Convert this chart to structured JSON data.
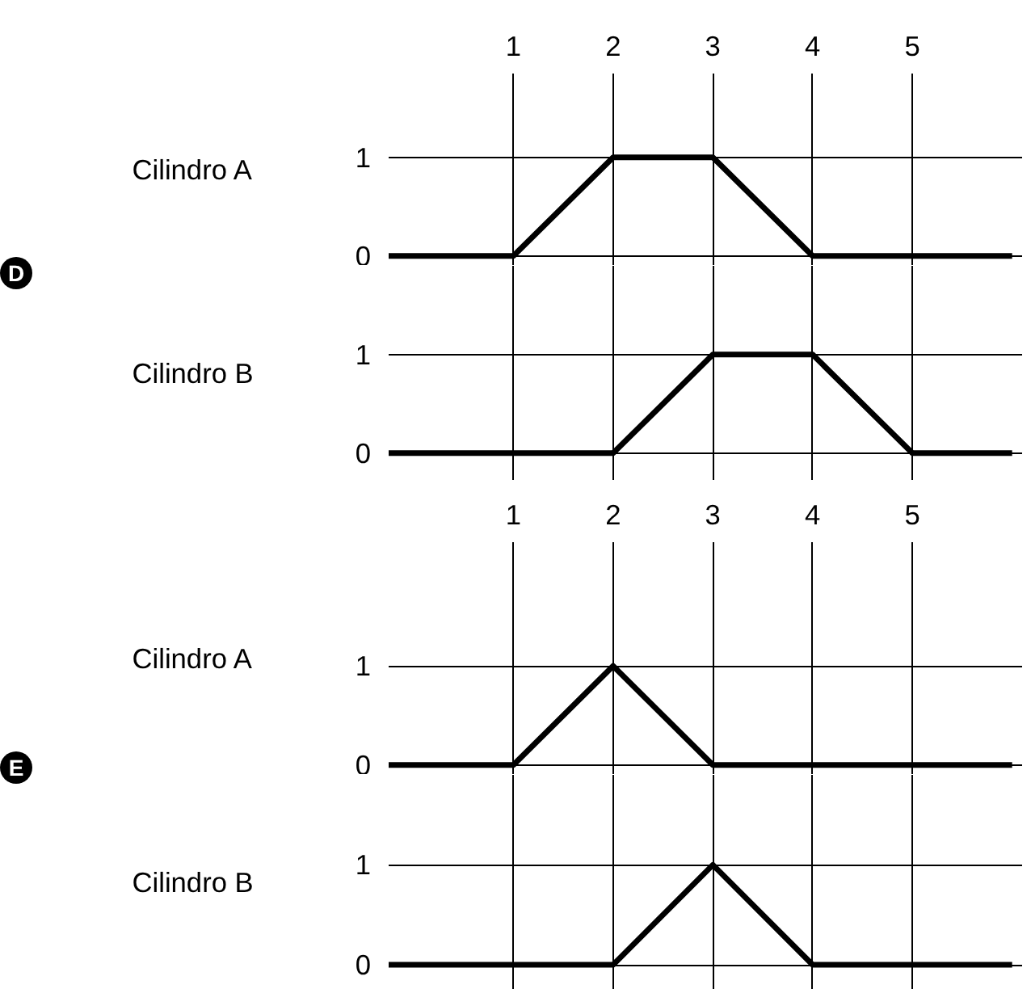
{
  "chart_data": [
    {
      "type": "line",
      "ylabel": "Cilindro A",
      "annotations": [
        "D"
      ],
      "x": [
        -0.25,
        1,
        2,
        3,
        4,
        6.0
      ],
      "series": [
        {
          "color": "#000000",
          "values": [
            0,
            0,
            1,
            1,
            0,
            0
          ]
        }
      ],
      "xlim": [
        -0.25,
        6.1
      ],
      "xticks": [
        1,
        2,
        3,
        4,
        5
      ],
      "ylim": [
        -0.1,
        1.85
      ],
      "yticks": [
        0,
        1
      ],
      "grid": true
    },
    {
      "type": "line",
      "ylabel": "Cilindro B",
      "x": [
        -0.25,
        2,
        3,
        4,
        5,
        6.0
      ],
      "series": [
        {
          "color": "#000000",
          "values": [
            0,
            0,
            1,
            1,
            0,
            0
          ]
        }
      ],
      "xlim": [
        -0.25,
        6.1
      ],
      "xticks": [
        1,
        2,
        3,
        4,
        5
      ],
      "ylim": [
        -0.28,
        1.9
      ],
      "yticks": [
        0,
        1
      ],
      "grid": true,
      "tick_labels": "y"
    },
    {
      "type": "line",
      "ylabel": "Cilindro A",
      "annotations": [
        "E"
      ],
      "x": [
        -0.25,
        1,
        2,
        3,
        6.0
      ],
      "series": [
        {
          "color": "#000000",
          "values": [
            0,
            0,
            1,
            0,
            0
          ]
        }
      ],
      "xlim": [
        -0.25,
        6.1
      ],
      "xticks": [
        1,
        2,
        3,
        4,
        5
      ],
      "ylim": [
        -0.1,
        2.25
      ],
      "yticks": [
        0,
        1
      ],
      "grid": true
    },
    {
      "type": "line",
      "ylabel": "Cilindro B",
      "x": [
        -0.25,
        2,
        3,
        4,
        6.0
      ],
      "series": [
        {
          "color": "#000000",
          "values": [
            0,
            0,
            1,
            0,
            0
          ]
        }
      ],
      "xlim": [
        -0.25,
        6.1
      ],
      "xticks": [
        1,
        2,
        3,
        4,
        5
      ],
      "ylim": [
        -0.25,
        1.9
      ],
      "yticks": [
        0,
        1
      ],
      "grid": true,
      "tick_labels": "y"
    }
  ]
}
